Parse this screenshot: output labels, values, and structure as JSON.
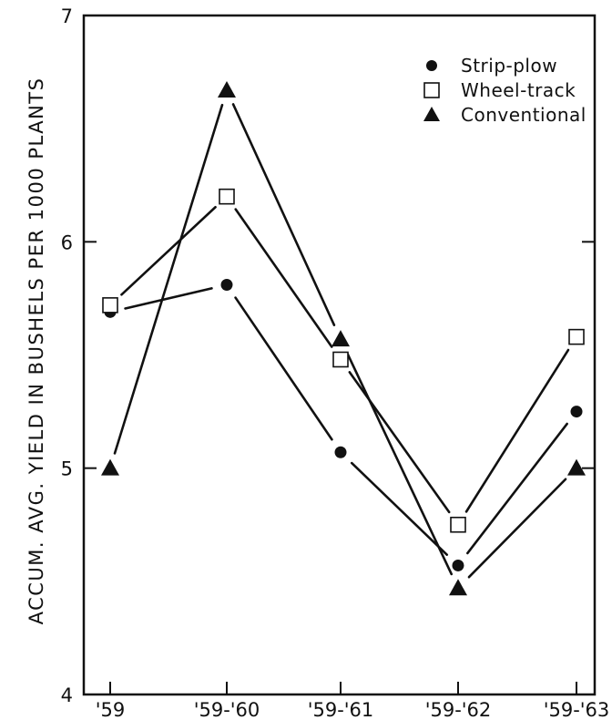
{
  "chart_data": {
    "type": "line",
    "title": "",
    "xlabel": "",
    "ylabel": "ACCUM. AVG. YIELD IN BUSHELS PER 1000 PLANTS",
    "categories": [
      "'59",
      "'59-'60",
      "'59-'61",
      "'59-'62",
      "'59-'63"
    ],
    "ylim": [
      4,
      7
    ],
    "yticks": [
      "4",
      "5",
      "6",
      "7"
    ],
    "grid": false,
    "legend_position": "top-right",
    "series": [
      {
        "name": "Strip-plow",
        "marker": "filled-circle",
        "values": [
          5.69,
          5.81,
          5.07,
          4.57,
          5.25
        ]
      },
      {
        "name": "Wheel-track",
        "marker": "open-square",
        "values": [
          5.72,
          6.2,
          5.48,
          4.75,
          5.58
        ]
      },
      {
        "name": "Conventional",
        "marker": "filled-triangle",
        "values": [
          5.0,
          6.67,
          5.57,
          4.47,
          5.0
        ]
      }
    ],
    "colors": {
      "ink": "#111111",
      "background": "#ffffff"
    }
  }
}
